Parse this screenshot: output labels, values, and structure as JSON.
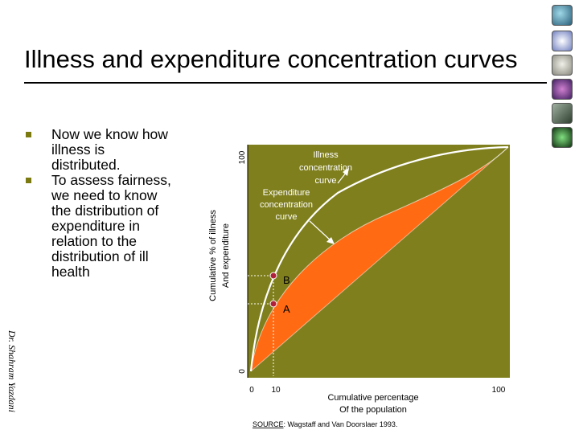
{
  "title": "Illness and expenditure concentration curves",
  "bullets": [
    {
      "text": "Now we know how illness is distributed."
    },
    {
      "text": "To assess fairness, we need to know the distribution of expenditure in relation to the distribution of ill health"
    }
  ],
  "side_credit": "Dr. Shahram Yazdani",
  "colors": {
    "background": "#7f7f1e",
    "fill": "#ff6a13",
    "marker": "#b0203a"
  },
  "icons": [
    "globe-icon",
    "symbol-icon",
    "skull-icon",
    "brain-icon",
    "hand-icon",
    "neuron-icon"
  ],
  "diagram": {
    "y_axis_label_1": "Cumulative % of illness",
    "y_axis_label_2": "And expenditure",
    "y_tick_top": "100",
    "y_tick_bottom": "0",
    "x_tick_0": "0",
    "x_tick_10": "10",
    "x_tick_100": "100",
    "x_label_1": "Cumulative percentage",
    "x_label_2": "Of the population",
    "illness_label": [
      "Illness",
      "concentration",
      "curve"
    ],
    "expenditure_label": [
      "Expenditure",
      "concentration",
      "curve"
    ],
    "point_b": "B",
    "point_a": "A",
    "source_prefix": "SOURCE",
    "source_rest": ": Wagstaff and Van Doorslaer 1993."
  }
}
